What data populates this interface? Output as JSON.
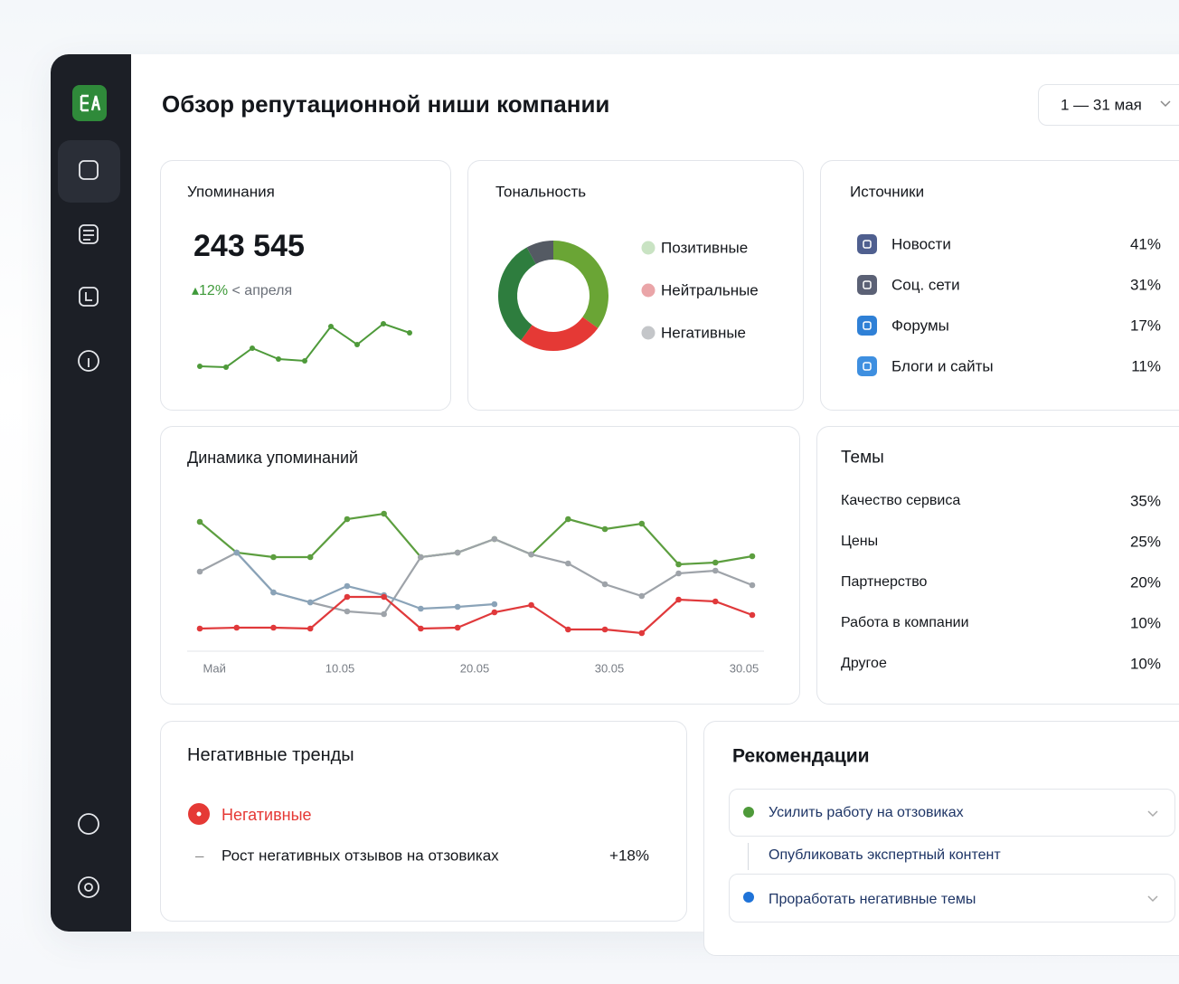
{
  "header": {
    "title": "Обзор репутационной ниши компании",
    "date_range": "1 — 31 мая"
  },
  "mentions": {
    "title": "Упоминания",
    "value": "243 545",
    "change": "▴12%",
    "change_note": "< апреля",
    "sparkline": {
      "values": [
        15,
        14,
        35,
        23,
        21,
        59,
        39,
        62,
        52
      ],
      "ylim": [
        0,
        80
      ],
      "color": "#4e9a3a"
    }
  },
  "tonality": {
    "title": "Тональность",
    "legend": [
      {
        "label": "Позитивные",
        "color": "#c9e3c3"
      },
      {
        "label": "Нейтральные",
        "color": "#eaa5a8"
      },
      {
        "label": "Негативные",
        "color": "#c4c6c9"
      }
    ],
    "donut": {
      "values": [
        35,
        25,
        32,
        8
      ],
      "colors": [
        "#6aa535",
        "#e53935",
        "#2e7d3e",
        "#545a63"
      ]
    }
  },
  "sources": {
    "title": "Источники",
    "items": [
      {
        "name": "Новости",
        "share": "41%",
        "color": "#4f5f8f"
      },
      {
        "name": "Соц. сети",
        "share": "31%",
        "color": "#5b6175"
      },
      {
        "name": "Форумы",
        "share": "17%",
        "color": "#2f80d6"
      },
      {
        "name": "Блоги и сайты",
        "share": "11%",
        "color": "#3e8fe0"
      }
    ]
  },
  "dynamics": {
    "title": "Динамика упоминаний",
    "x_labels": [
      "Май",
      "10.05",
      "20.05",
      "30.05",
      "30.05"
    ],
    "ylim": [
      0,
      170
    ],
    "series": [
      {
        "color": "#5c9e3f",
        "values": [
          143,
          109,
          104,
          104,
          146,
          152,
          104,
          109,
          124,
          107,
          146,
          135,
          141,
          96,
          98,
          105
        ]
      },
      {
        "color": "#9ea3a9",
        "values": [
          88,
          109,
          65,
          54,
          44,
          41,
          104,
          109,
          124,
          107,
          97,
          74,
          61,
          86,
          89,
          73
        ]
      },
      {
        "color": "#8aa3b8",
        "values": [
          null,
          109,
          65,
          54,
          72,
          62,
          47,
          49,
          52,
          null,
          null,
          null,
          null,
          null,
          null,
          null
        ]
      },
      {
        "color": "#e0393b",
        "values": [
          25,
          26,
          26,
          25,
          60,
          60,
          25,
          26,
          43,
          51,
          24,
          24,
          20,
          57,
          55,
          40
        ]
      }
    ]
  },
  "themes": {
    "title": "Темы",
    "items": [
      {
        "name": "Качество сервиса",
        "share": "35%"
      },
      {
        "name": "Цены",
        "share": "25%"
      },
      {
        "name": "Партнерство",
        "share": "20%"
      },
      {
        "name": "Работа в компании",
        "share": "10%"
      },
      {
        "name": "Другое",
        "share": "10%"
      }
    ]
  },
  "negative_trends": {
    "title": "Негативные тренды",
    "tag": "Негативные",
    "items": [
      {
        "text": "Рост негативных отзывов на отзовиках",
        "change": "+18%"
      }
    ]
  },
  "recommendations": {
    "title": "Рекомендации",
    "items": [
      {
        "text": "Усилить работу на отзовиках",
        "color": "#4e9a3a"
      },
      {
        "text": "Опубликовать экспертный контент"
      },
      {
        "text": "Проработать негативные темы",
        "color": "#1f73d8"
      }
    ]
  }
}
